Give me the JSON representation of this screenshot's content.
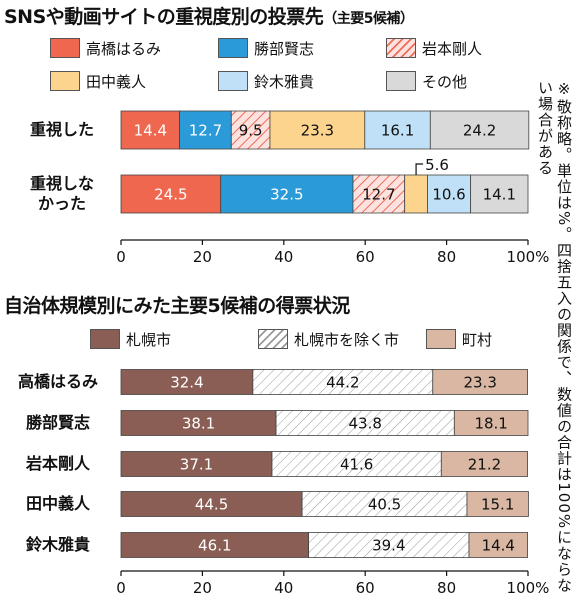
{
  "chart_data": [
    {
      "type": "bar",
      "orientation": "horizontal",
      "stacked": true,
      "title": "SNSや動画サイトの重視度別の投票先",
      "subtitle": "（主要5候補）",
      "categories": [
        "重視した",
        "重視しなかった"
      ],
      "series": [
        {
          "name": "高橋はるみ",
          "color": "#f0674f",
          "pattern": "solid",
          "values": [
            14.4,
            24.5
          ]
        },
        {
          "name": "勝部賢志",
          "color": "#2a9bd8",
          "pattern": "solid",
          "values": [
            12.7,
            32.5
          ]
        },
        {
          "name": "岩本剛人",
          "color": "#f7a9a0",
          "pattern": "hatch",
          "values": [
            9.5,
            12.7
          ]
        },
        {
          "name": "田中義人",
          "color": "#fcd48e",
          "pattern": "solid",
          "values": [
            23.3,
            5.6
          ]
        },
        {
          "name": "鈴木雅貴",
          "color": "#bfe0f6",
          "pattern": "solid",
          "values": [
            16.1,
            10.6
          ]
        },
        {
          "name": "その他",
          "color": "#d9d9d9",
          "pattern": "solid",
          "values": [
            24.2,
            14.1
          ]
        }
      ],
      "xlim": [
        0,
        100
      ],
      "xticks": [
        "0",
        "20",
        "40",
        "60",
        "80",
        "100%"
      ],
      "grid": false,
      "legend": "top"
    },
    {
      "type": "bar",
      "orientation": "horizontal",
      "stacked": true,
      "title": "自治体規模別にみた主要5候補の得票状況",
      "categories": [
        "高橋はるみ",
        "勝部賢志",
        "岩本剛人",
        "田中義人",
        "鈴木雅貴"
      ],
      "series": [
        {
          "name": "札幌市",
          "color": "#8a5e55",
          "pattern": "solid",
          "values": [
            32.4,
            38.1,
            37.1,
            44.5,
            46.1
          ]
        },
        {
          "name": "札幌市を除く市",
          "color": "#ffffff",
          "pattern": "hatch",
          "values": [
            44.2,
            43.8,
            41.6,
            40.5,
            39.4
          ]
        },
        {
          "name": "町村",
          "color": "#d9b7a2",
          "pattern": "solid",
          "values": [
            23.3,
            18.1,
            21.2,
            15.1,
            14.4
          ]
        }
      ],
      "xlim": [
        0,
        100
      ],
      "xticks": [
        "0",
        "20",
        "40",
        "60",
        "80",
        "100%"
      ],
      "grid": false,
      "legend": "top"
    }
  ],
  "note": "※敬称略。単位は%。四捨五入の関係で、数値の合計は100%にならない場合がある"
}
